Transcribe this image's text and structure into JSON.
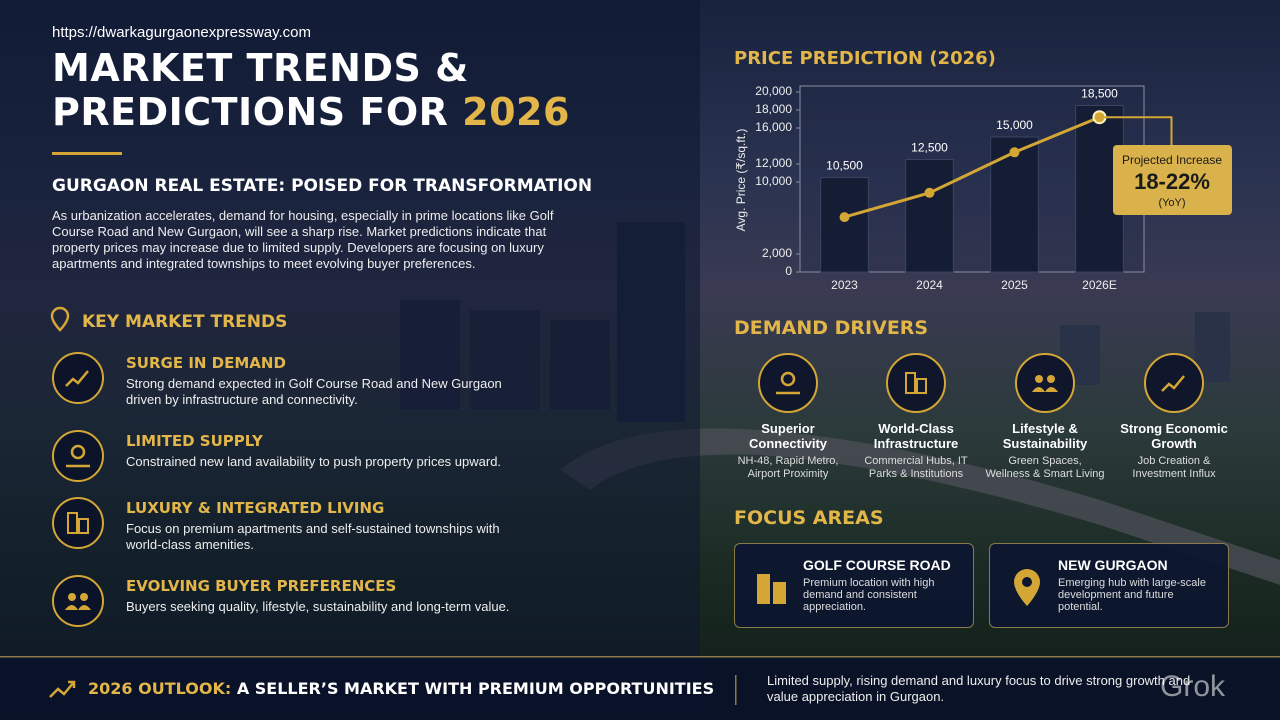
{
  "header": {
    "url": "https://dwarkagurgaonexpressway.com",
    "title_line1": "MARKET TRENDS &",
    "title_line2": "PREDICTIONS FOR",
    "title_year": "2026",
    "subtitle": "GURGAON REAL ESTATE: POISED FOR TRANSFORMATION",
    "intro": "As urbanization accelerates, demand for housing, especially in prime locations like Golf Course Road and New Gurgaon, will see a sharp rise. Market predictions indicate that property prices may increase due to limited supply. Developers are focusing on luxury apartments and integrated townships to meet evolving buyer preferences."
  },
  "key_trends": {
    "heading": "KEY MARKET TRENDS",
    "items": [
      {
        "title": "SURGE IN DEMAND",
        "text": "Strong demand expected in Golf Course Road and New Gurgaon driven by infrastructure and connectivity."
      },
      {
        "title": "LIMITED SUPPLY",
        "text": "Constrained new land availability to push property prices upward."
      },
      {
        "title": "LUXURY & INTEGRATED LIVING",
        "text": "Focus on premium apartments and self-sustained townships with world-class amenities."
      },
      {
        "title": "EVOLVING BUYER PREFERENCES",
        "text": "Buyers seeking quality, lifestyle, sustainability and long-term value."
      }
    ]
  },
  "chart_data": {
    "type": "bar",
    "title": "PRICE PREDICTION (2026)",
    "y_label": "Avg. Price (₹/sq.ft.)",
    "categories": [
      "2023",
      "2024",
      "2025",
      "2026E"
    ],
    "series": [
      {
        "values": [
          10500,
          12500,
          15000,
          18500
        ],
        "value_labels": [
          "10,500",
          "12,500",
          "15,000",
          "18,500"
        ],
        "color": "#141d33"
      },
      {
        "type": "line",
        "values": [
          6100,
          8800,
          13300,
          17200
        ],
        "color": "#d4a636"
      }
    ],
    "ylim": [
      0,
      20000
    ],
    "yticks": [
      0,
      {
        "value": 2000,
        "label": "2,000"
      },
      {
        "value": 10000,
        "label": "10,000"
      },
      {
        "value": 12000,
        "label": "12,000"
      },
      {
        "value": 16000,
        "label": "16,000"
      },
      {
        "value": 18000,
        "label": "18,000"
      },
      {
        "value": 20000,
        "label": "20,000"
      }
    ],
    "grid": false,
    "annotation": {
      "title": "Projected Increase",
      "value": "18-22%",
      "note": "(YoY)"
    }
  },
  "demand_drivers": {
    "heading": "DEMAND DRIVERS",
    "items": [
      {
        "title": "Superior Connectivity",
        "text": "NH-48, Rapid Metro, Airport Proximity"
      },
      {
        "title": "World-Class Infrastructure",
        "text": "Commercial Hubs, IT Parks & Institutions"
      },
      {
        "title": "Lifestyle & Sustainability",
        "text": "Green Spaces, Wellness & Smart Living"
      },
      {
        "title": "Strong Economic Growth",
        "text": "Job Creation & Investment Influx"
      }
    ]
  },
  "focus_areas": {
    "heading": "FOCUS AREAS",
    "items": [
      {
        "title": "GOLF COURSE ROAD",
        "text": "Premium location with high demand and consistent appreciation."
      },
      {
        "title": "NEW GURGAON",
        "text": "Emerging hub with large-scale development and future potential."
      }
    ]
  },
  "footer": {
    "label": "2026 OUTLOOK:",
    "headline": "A SELLER’S MARKET WITH PREMIUM OPPORTUNITIES",
    "text": "Limited supply, rising demand and luxury focus to drive strong growth and value appreciation in Gurgaon."
  },
  "watermark": "Grok"
}
